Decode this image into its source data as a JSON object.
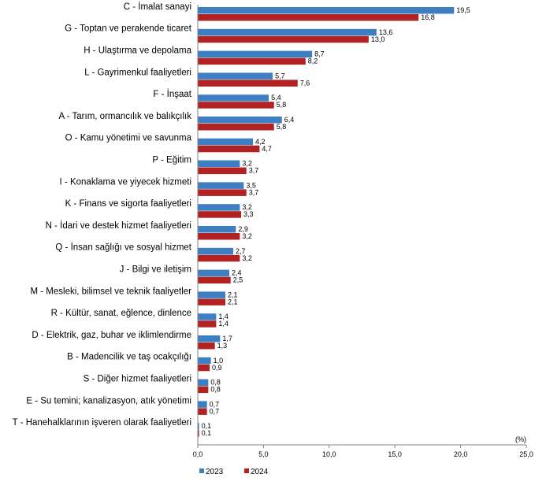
{
  "chart_data": {
    "type": "bar",
    "orientation": "horizontal",
    "categories": [
      "C - İmalat sanayi",
      "G - Toptan ve perakende ticaret",
      "H - Ulaştırma ve depolama",
      "L - Gayrimenkul faaliyetleri",
      "F - İnşaat",
      "A - Tarım, ormancılık ve balıkçılık",
      "O - Kamu yönetimi ve savunma",
      "P - Eğitim",
      "I - Konaklama ve yiyecek hizmeti",
      "K - Finans ve sigorta faaliyetleri",
      "N - İdari ve destek hizmet faaliyetleri",
      "Q - İnsan sağlığı ve sosyal hizmet",
      "J - Bilgi ve iletişim",
      "M - Mesleki, bilimsel ve teknik faaliyetler",
      "R - Kültür, sanat, eğlence, dinlence",
      "D - Elektrik, gaz, buhar ve iklimlendirme",
      "B - Madencilik ve taş ocakçılığı",
      "S - Diğer hizmet faaliyetleri",
      "E - Su temini; kanalizasyon, atık yönetimi",
      "T - Hanehalklarının işveren olarak faaliyetleri"
    ],
    "series": [
      {
        "name": "2023",
        "color": "#3e7fc4",
        "values": [
          19.5,
          13.6,
          8.7,
          5.7,
          5.4,
          6.4,
          4.2,
          3.2,
          3.5,
          3.2,
          2.9,
          2.7,
          2.4,
          2.1,
          1.4,
          1.7,
          1.0,
          0.8,
          0.7,
          0.1
        ],
        "labels": [
          "19,5",
          "13,6",
          "8,7",
          "5,7",
          "5,4",
          "6,4",
          "4,2",
          "3,2",
          "3,5",
          "3,2",
          "2,9",
          "2,7",
          "2,4",
          "2,1",
          "1,4",
          "1,7",
          "1,0",
          "0,8",
          "0,7",
          "0,1"
        ]
      },
      {
        "name": "2024",
        "color": "#b22222",
        "values": [
          16.8,
          13.0,
          8.2,
          7.6,
          5.8,
          5.8,
          4.7,
          3.7,
          3.7,
          3.3,
          3.2,
          3.2,
          2.5,
          2.1,
          1.4,
          1.3,
          0.9,
          0.8,
          0.7,
          0.1
        ],
        "labels": [
          "16,8",
          "13,0",
          "8,2",
          "7,6",
          "5,8",
          "5,8",
          "4,7",
          "3,7",
          "3,7",
          "3,3",
          "3,2",
          "3,2",
          "2,5",
          "2,1",
          "1,4",
          "1,3",
          "0,9",
          "0,8",
          "0,7",
          "0,1"
        ]
      }
    ],
    "xlim": [
      0,
      25
    ],
    "xticks": [
      "0,0",
      "5,0",
      "10,0",
      "15,0",
      "20,0",
      "25,0"
    ],
    "unit_label": "(%)",
    "grid": false,
    "legend_position": "bottom-left"
  }
}
